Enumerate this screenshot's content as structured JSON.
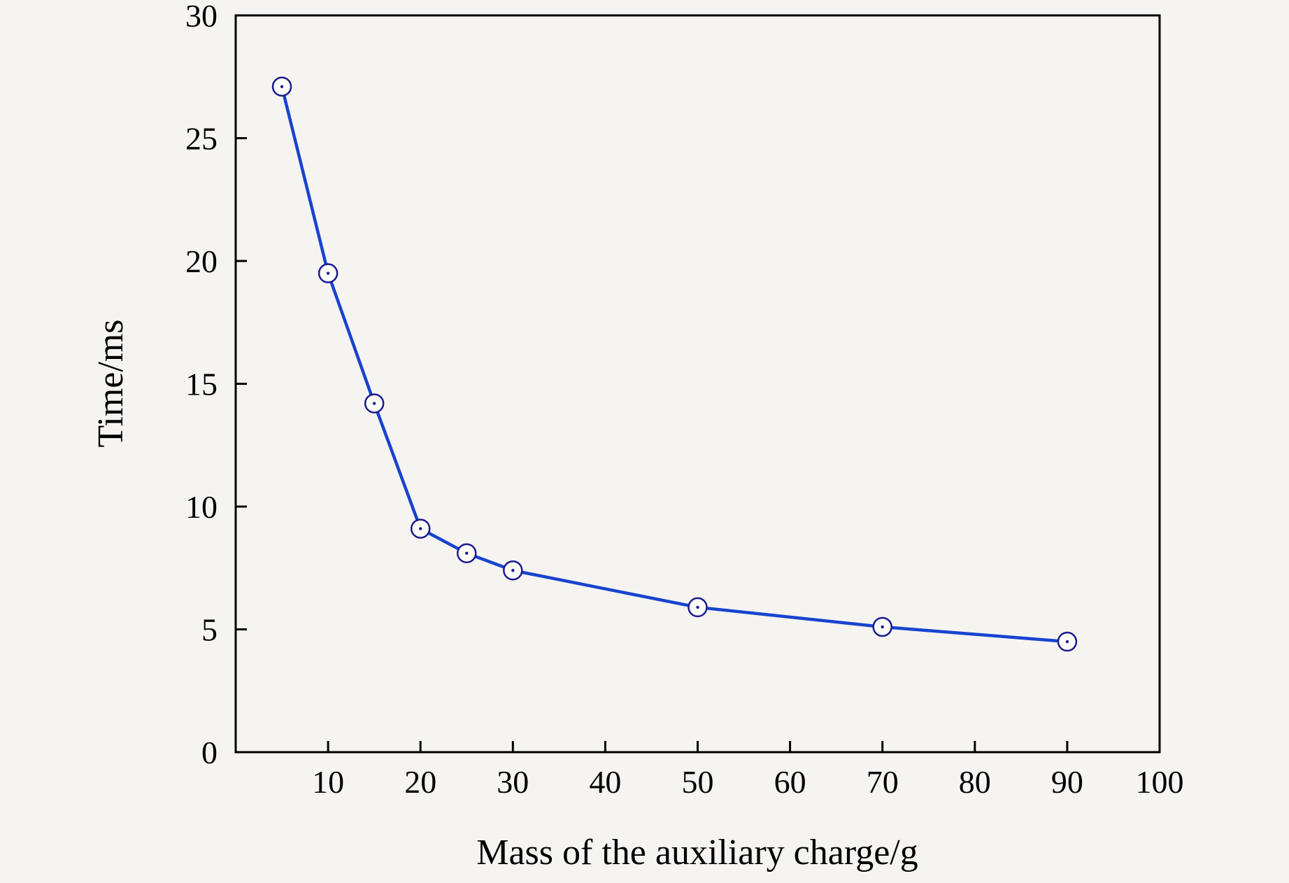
{
  "chart_data": {
    "type": "line",
    "title": "",
    "xlabel": "Mass of the auxiliary charge/g",
    "ylabel": "Time/ms",
    "x": [
      5,
      10,
      15,
      20,
      25,
      30,
      50,
      70,
      90
    ],
    "y": [
      27.1,
      19.5,
      14.2,
      9.1,
      8.1,
      7.4,
      5.9,
      5.1,
      4.5
    ],
    "xlim": [
      0,
      100
    ],
    "ylim": [
      0,
      30
    ],
    "x_ticks": [
      10,
      20,
      30,
      40,
      50,
      60,
      70,
      80,
      90,
      100
    ],
    "y_ticks": [
      0,
      5,
      10,
      15,
      20,
      25,
      30
    ],
    "grid": false,
    "legend_position": "none",
    "marker": "open-circle-with-center-dot",
    "colors": {
      "line": "#1843cf",
      "marker_edge": "#1b1b8f",
      "marker_fill": "#fdfdfb",
      "axis": "#000000",
      "background": "#f5f4f1"
    }
  }
}
